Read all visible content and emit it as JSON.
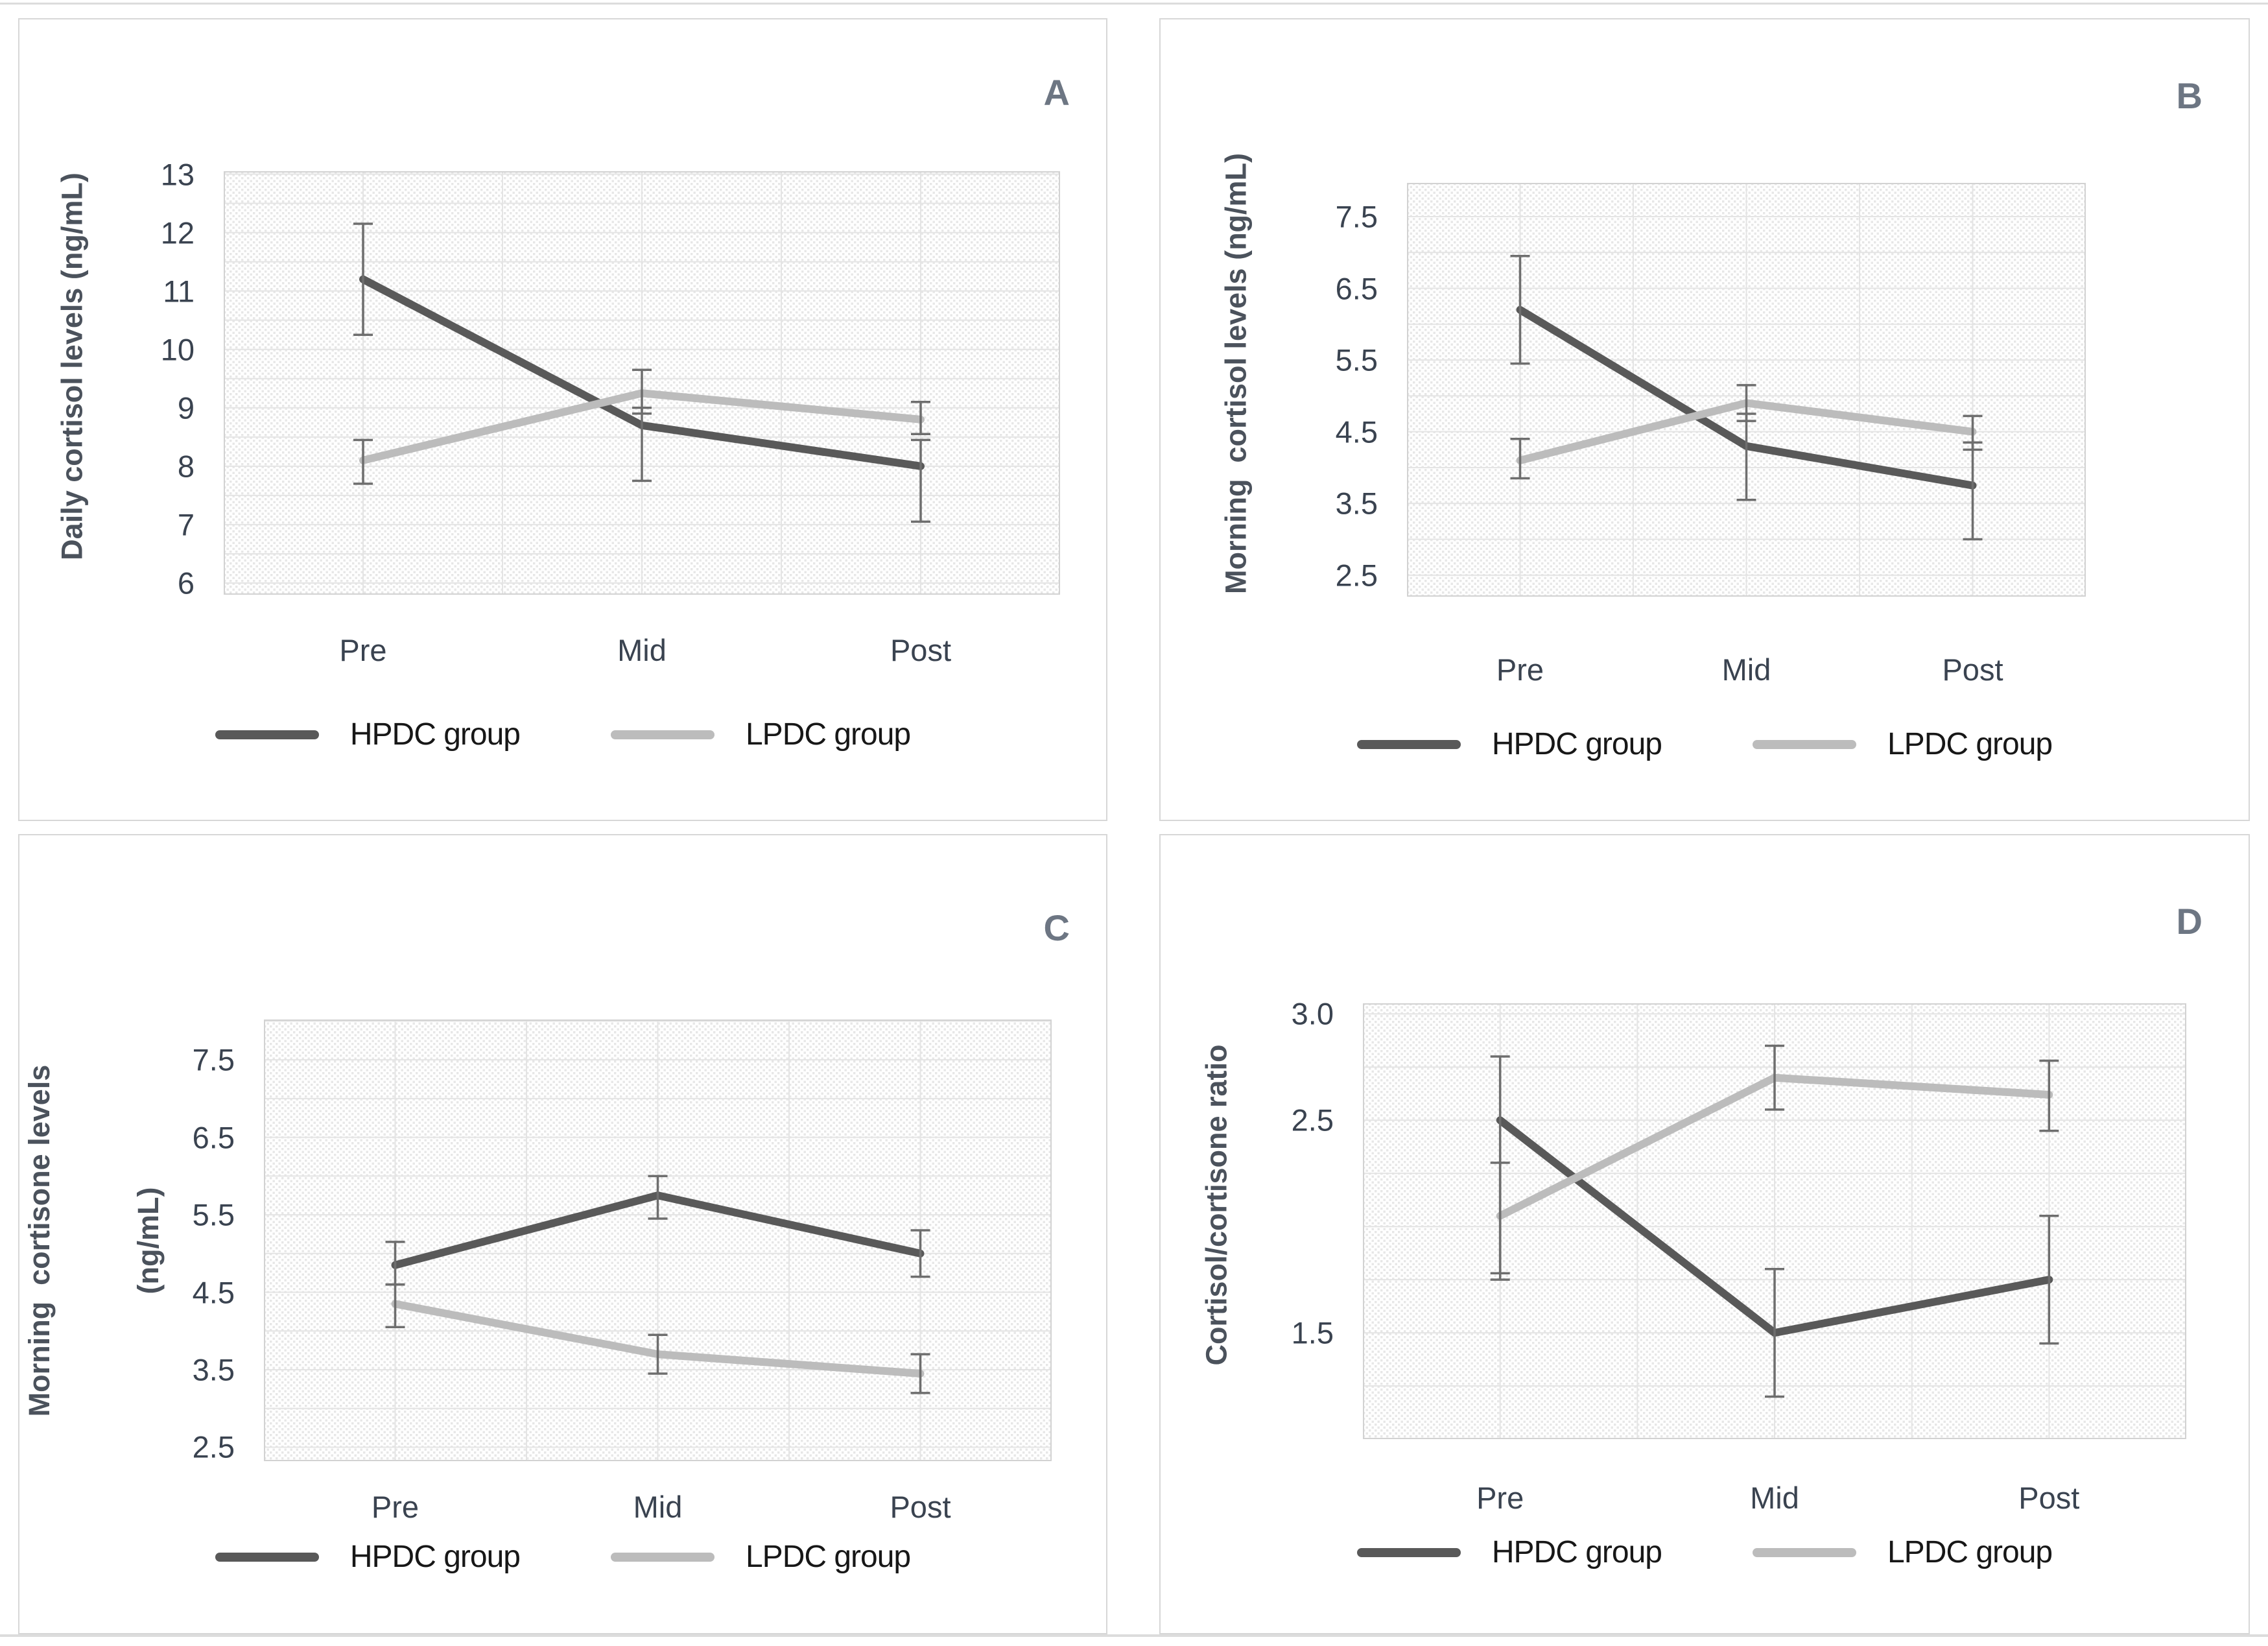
{
  "figure": {
    "categories_note": "timepoints",
    "group_dark": "HPDC group",
    "group_light": "LPDC group"
  },
  "colors": {
    "hpdc": "#595959",
    "lpdc": "#bcbcbc",
    "error_bar": "#6e6e6e",
    "grid": "#e4e4e4",
    "plot_border": "#d2d2d2",
    "hatch": "#e7e7e7",
    "tick_text": "#3a4350",
    "axis_title_text": "#4b525c",
    "panel_letter": "#6d7683",
    "panel_border": "#d7d7d7"
  },
  "chart_data": [
    {
      "type": "line",
      "panel_label": "A",
      "ylabel": "Daily cortisol levels (ng/mL)",
      "ylabel_lines": [
        "Daily cortisol levels (ng/mL)"
      ],
      "categories": [
        "Pre",
        "Mid",
        "Post"
      ],
      "y_ticks": [
        {
          "v": 13,
          "label": "13"
        },
        {
          "v": 12,
          "label": "12"
        },
        {
          "v": 11,
          "label": "11"
        },
        {
          "v": 10,
          "label": "10"
        },
        {
          "v": 9,
          "label": "9"
        },
        {
          "v": 8,
          "label": "8"
        },
        {
          "v": 7,
          "label": "7"
        },
        {
          "v": 6,
          "label": "6"
        }
      ],
      "ylim": [
        5.8,
        13.05
      ],
      "grid_step": 0.5,
      "grid": true,
      "legend_position": "bottom",
      "series": [
        {
          "name": "HPDC group",
          "color_key": "hpdc",
          "values": [
            11.2,
            8.7,
            8.0
          ],
          "err_low": [
            10.25,
            7.75,
            7.05
          ],
          "err_high": [
            12.15,
            9.0,
            8.45
          ]
        },
        {
          "name": "LPDC group",
          "color_key": "lpdc",
          "values": [
            8.1,
            9.25,
            8.8
          ],
          "err_low": [
            7.7,
            8.9,
            8.55
          ],
          "err_high": [
            8.45,
            9.65,
            9.1
          ]
        }
      ]
    },
    {
      "type": "line",
      "panel_label": "B",
      "ylabel": "Morning  cortisol levels (ng/mL)",
      "ylabel_lines": [
        "Morning  cortisol levels (ng/mL)"
      ],
      "categories": [
        "Pre",
        "Mid",
        "Post"
      ],
      "y_ticks": [
        {
          "v": 7.5,
          "label": "7.5"
        },
        {
          "v": 6.5,
          "label": "6.5"
        },
        {
          "v": 5.5,
          "label": "5.5"
        },
        {
          "v": 4.5,
          "label": "4.5"
        },
        {
          "v": 3.5,
          "label": "3.5"
        },
        {
          "v": 2.5,
          "label": "2.5"
        }
      ],
      "ylim": [
        2.2,
        7.97
      ],
      "grid_step": 0.5,
      "grid": true,
      "legend_position": "bottom",
      "series": [
        {
          "name": "HPDC group",
          "color_key": "hpdc",
          "values": [
            6.2,
            4.3,
            3.75
          ],
          "err_low": [
            5.45,
            3.55,
            3.0
          ],
          "err_high": [
            6.95,
            4.75,
            4.35
          ]
        },
        {
          "name": "LPDC group",
          "color_key": "lpdc",
          "values": [
            4.1,
            4.9,
            4.5
          ],
          "err_low": [
            3.85,
            4.65,
            4.25
          ],
          "err_high": [
            4.4,
            5.15,
            4.72
          ]
        }
      ]
    },
    {
      "type": "line",
      "panel_label": "C",
      "ylabel": "Morning  cortisone levels (ng/mL)",
      "ylabel_lines": [
        "Morning  cortisone levels",
        "(ng/mL)"
      ],
      "categories": [
        "Pre",
        "Mid",
        "Post"
      ],
      "y_ticks": [
        {
          "v": 7.5,
          "label": "7.5"
        },
        {
          "v": 6.5,
          "label": "6.5"
        },
        {
          "v": 5.5,
          "label": "5.5"
        },
        {
          "v": 4.5,
          "label": "4.5"
        },
        {
          "v": 3.5,
          "label": "3.5"
        },
        {
          "v": 2.5,
          "label": "2.5"
        }
      ],
      "ylim": [
        2.32,
        8.02
      ],
      "grid_step": 0.5,
      "grid": true,
      "legend_position": "bottom",
      "series": [
        {
          "name": "HPDC group",
          "color_key": "hpdc",
          "values": [
            4.85,
            5.75,
            5.0
          ],
          "err_low": [
            4.6,
            5.45,
            4.7
          ],
          "err_high": [
            5.15,
            6.0,
            5.3
          ]
        },
        {
          "name": "LPDC group",
          "color_key": "lpdc",
          "values": [
            4.35,
            3.7,
            3.45
          ],
          "err_low": [
            4.05,
            3.45,
            3.2
          ],
          "err_high": [
            4.6,
            3.95,
            3.7
          ]
        }
      ]
    },
    {
      "type": "line",
      "panel_label": "D",
      "ylabel": "Cortisol/cortisone ratio",
      "ylabel_lines": [
        "Cortisol/cortisone ratio"
      ],
      "categories": [
        "Pre",
        "Mid",
        "Post"
      ],
      "y_ticks": [
        {
          "v": 3.0,
          "label": "3.0"
        },
        {
          "v": 2.5,
          "label": "2.5"
        },
        {
          "v": 1.5,
          "label": "1.5"
        }
      ],
      "ylim": [
        1.0,
        3.05
      ],
      "grid_step": 0.25,
      "grid": true,
      "legend_position": "bottom",
      "series": [
        {
          "name": "HPDC group",
          "color_key": "hpdc",
          "values": [
            2.5,
            1.5,
            1.75
          ],
          "err_low": [
            1.75,
            1.2,
            1.45
          ],
          "err_high": [
            2.8,
            1.8,
            2.05
          ]
        },
        {
          "name": "LPDC group",
          "color_key": "lpdc",
          "values": [
            2.05,
            2.7,
            2.62
          ],
          "err_low": [
            1.78,
            2.55,
            2.45
          ],
          "err_high": [
            2.3,
            2.85,
            2.78
          ]
        }
      ]
    }
  ]
}
